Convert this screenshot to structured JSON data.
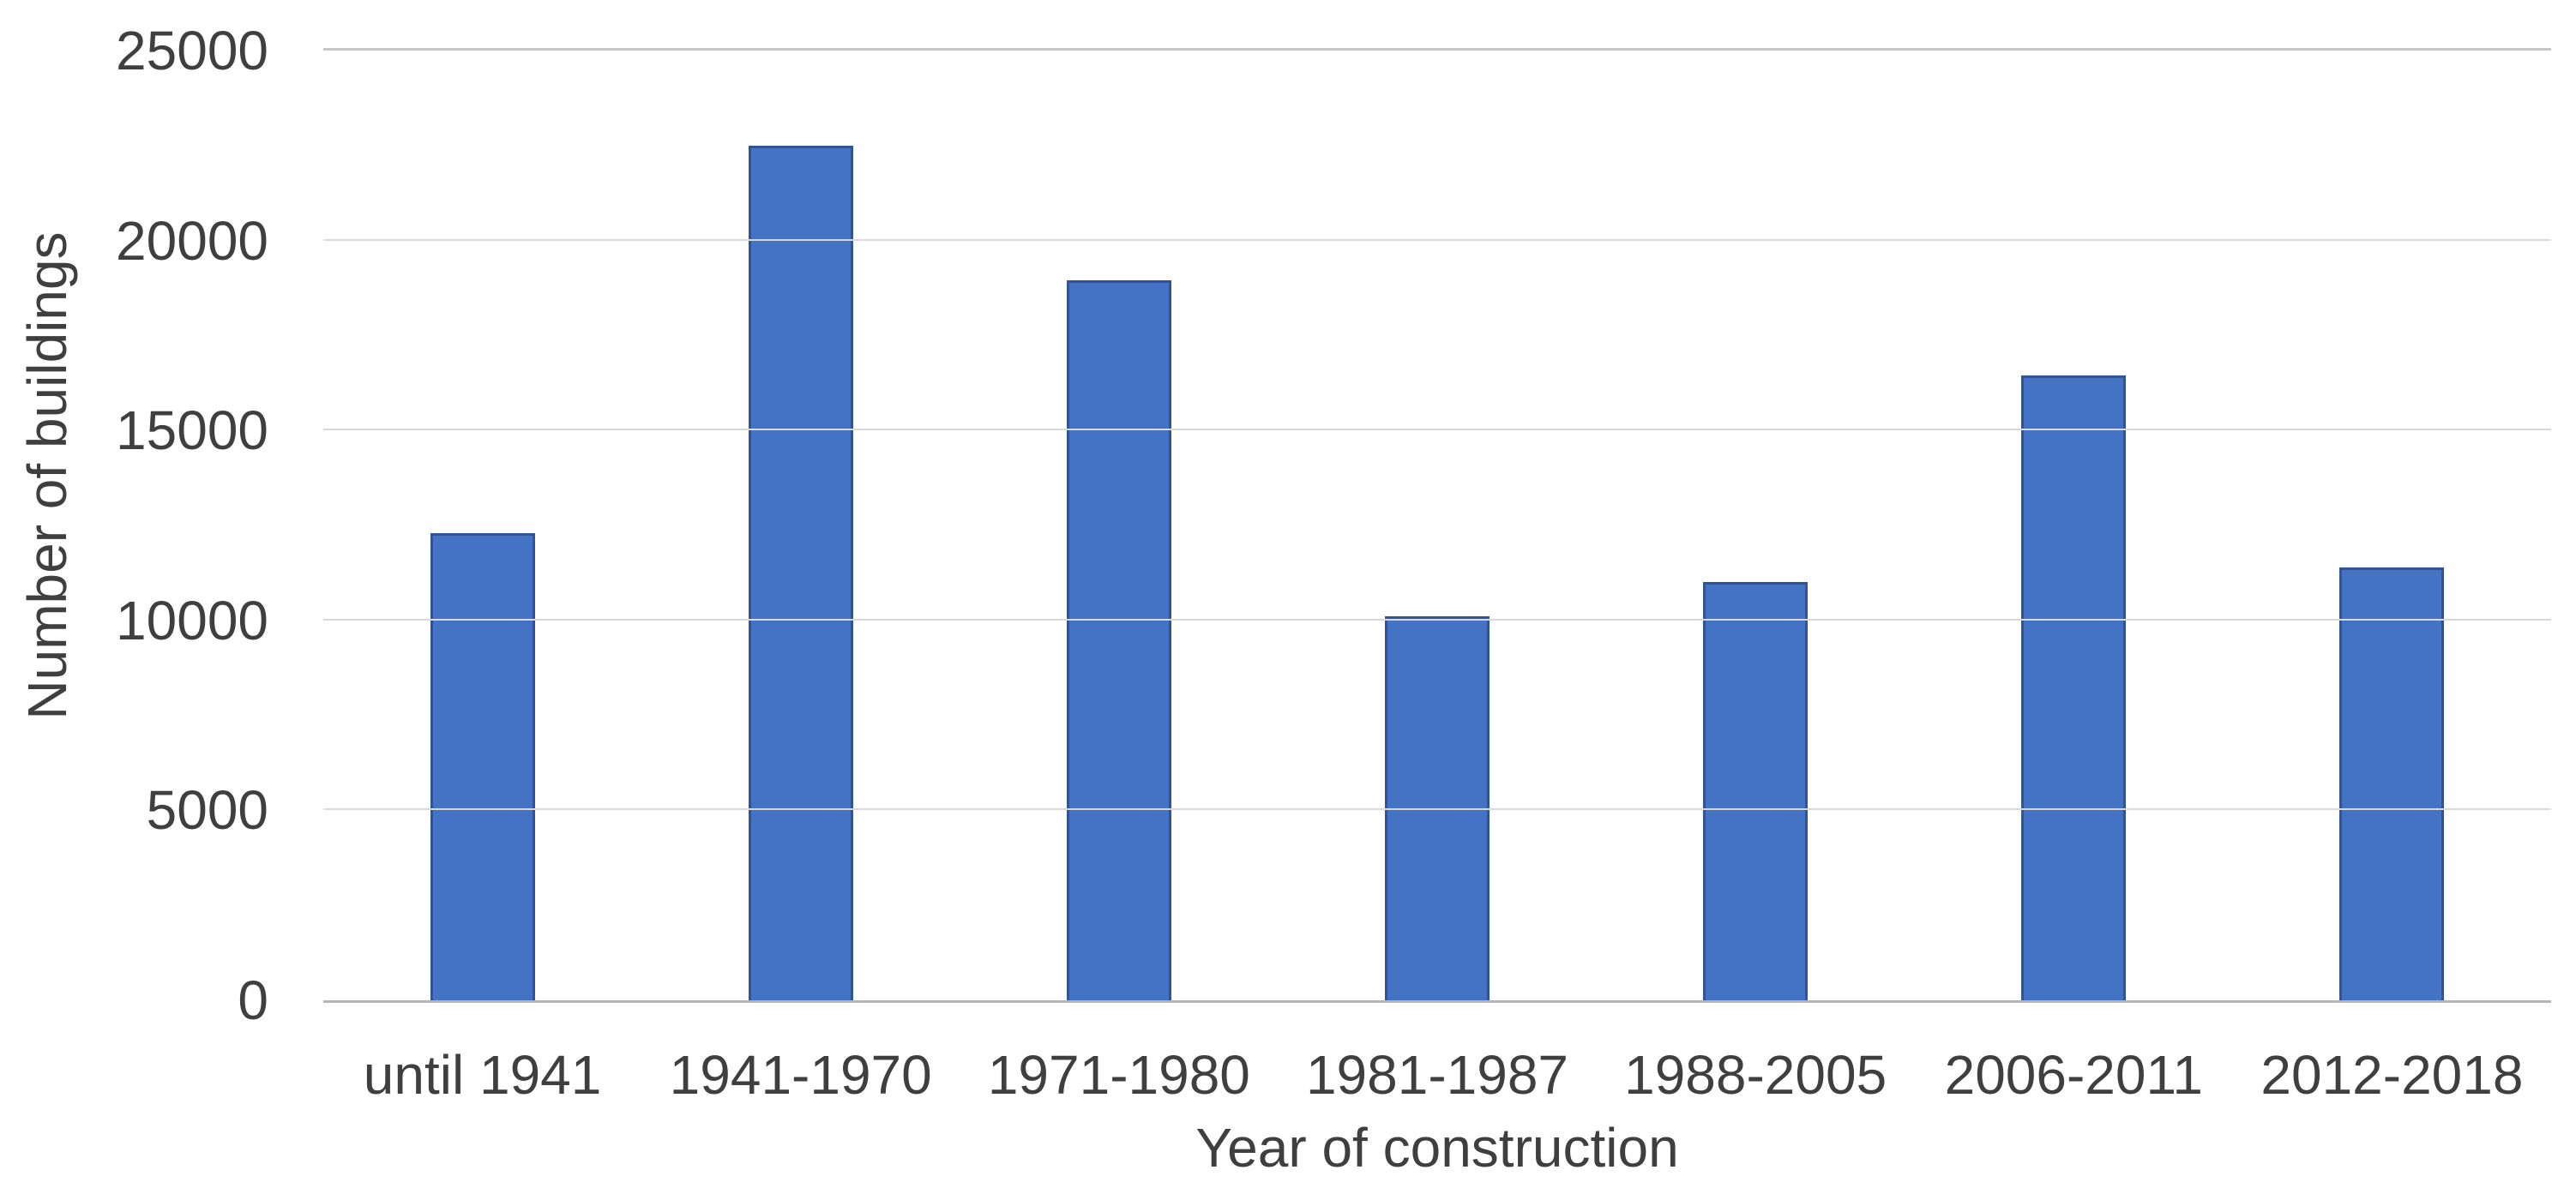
{
  "chart_data": {
    "type": "bar",
    "title": "",
    "categories": [
      "until 1941",
      "1941-1970",
      "1971-1980",
      "1981-1987",
      "1988-2005",
      "2006-2011",
      "2012-2018"
    ],
    "values": [
      12300,
      22500,
      18950,
      10100,
      11000,
      16450,
      11400
    ],
    "series_count": 1,
    "xlabel": "Year of construction",
    "ylabel": "Number of buildings",
    "ylim": [
      0,
      25000
    ],
    "yticks": [
      0,
      5000,
      10000,
      15000,
      20000,
      25000
    ],
    "ytick_labels": [
      "0",
      "5000",
      "10000",
      "15000",
      "20000",
      "25000"
    ],
    "grid": "horizontal-only",
    "legend": "none",
    "colors": {
      "bar_fill": "#4472c4",
      "bar_border": "#2f5597",
      "gridline": "#d9d9d9",
      "axis_line": "#b5b5b5",
      "text": "#3f3f3f",
      "background": "#ffffff"
    }
  }
}
